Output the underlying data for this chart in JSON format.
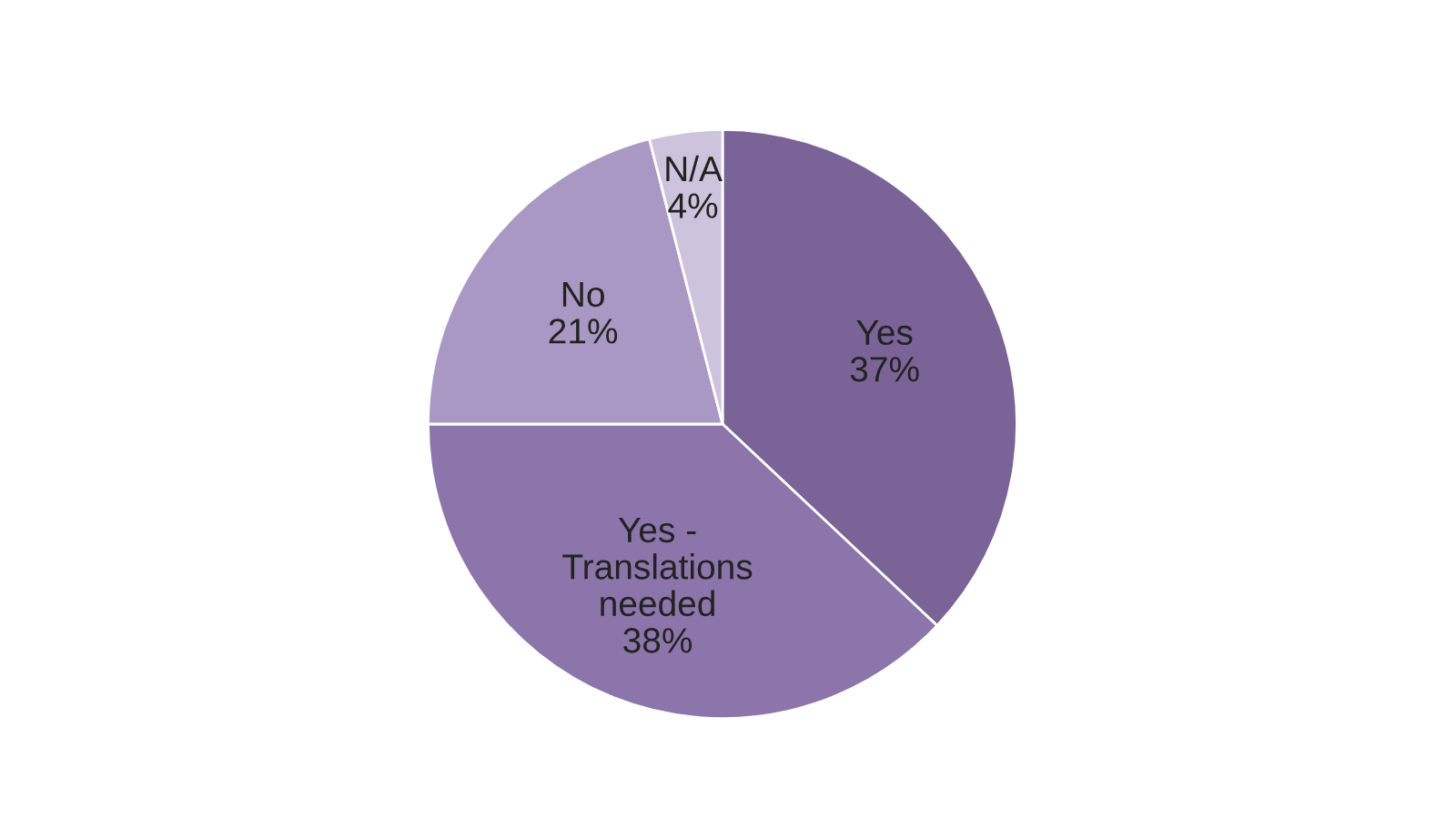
{
  "chart_data": {
    "type": "pie",
    "categories": [
      "Yes",
      "Yes -\nTranslations\nneeded",
      "No",
      "N/A"
    ],
    "values": [
      37,
      38,
      21,
      4
    ],
    "value_labels": [
      "37%",
      "38%",
      "21%",
      "4%"
    ],
    "colors": [
      "#7a6396",
      "#8c75aa",
      "#a898c3",
      "#cec3dd"
    ],
    "legend": false
  }
}
